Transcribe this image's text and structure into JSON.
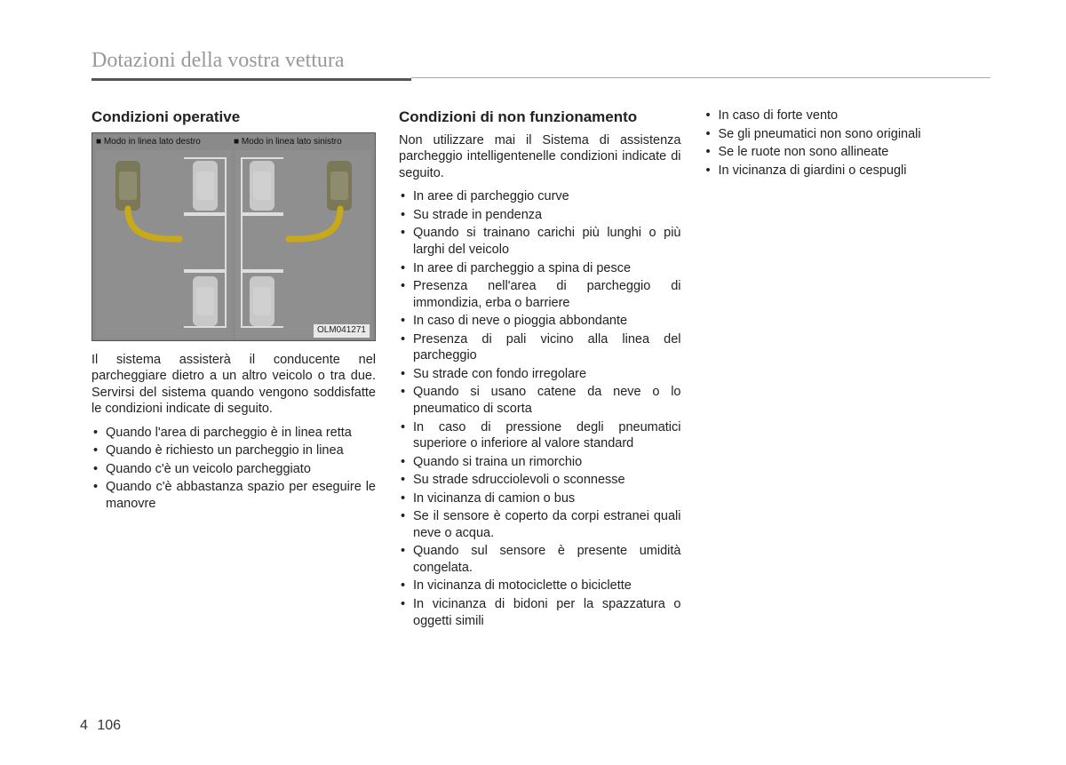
{
  "chapter_title": "Dotazioni della vostra vettura",
  "page": {
    "chapter": "4",
    "number": "106"
  },
  "col1": {
    "heading": "Condizioni operative",
    "figure": {
      "label_left": "■ Modo in linea lato destro",
      "label_right": "■ Modo in linea lato sinistro",
      "code": "OLM041271",
      "colors": {
        "bg": "#8a8a8a",
        "slot_border": "#dddddd",
        "path": "#c9a917",
        "car_moving": "#7a7856",
        "car_parked": "#c8c8c8"
      }
    },
    "intro": "Il sistema assisterà il conducente nel parcheggiare dietro a un altro veicolo o tra due. Servirsi del sistema quando vengono soddisfatte le condizioni indicate di seguito.",
    "bullets": [
      "Quando l'area di parcheggio è in linea retta",
      "Quando è richiesto un parcheggio in linea",
      "Quando c'è un veicolo parcheggiato",
      "Quando c'è abbastanza spazio per eseguire le manovre"
    ]
  },
  "col2": {
    "heading": "Condizioni di non funzionamento",
    "intro": "Non utilizzare mai il Sistema di assistenza parcheggio intelligentenelle condizioni indicate di seguito.",
    "bullets": [
      "In aree di parcheggio curve",
      "Su strade in pendenza",
      "Quando si trainano carichi più lunghi o più larghi del veicolo",
      "In aree di parcheggio a spina di pesce",
      "Presenza nell'area di parcheggio di immondizia, erba o barriere",
      "In caso di neve o pioggia abbondante",
      "Presenza di pali vicino alla linea del parcheggio",
      "Su strade con fondo irregolare",
      "Quando si usano catene da neve o lo pneumatico di scorta",
      "In caso di pressione degli pneumatici superiore o inferiore al valore standard",
      "Quando si traina un rimorchio",
      "Su strade sdrucciolevoli o sconnesse",
      "In vicinanza di camion o bus",
      "Se il sensore è coperto da corpi estranei quali neve o acqua.",
      "Quando sul sensore è presente umidità congelata.",
      "In vicinanza di motociclette o biciclette",
      "In vicinanza di bidoni per la spazzatura o oggetti simili"
    ]
  },
  "col3": {
    "bullets": [
      "In caso di forte vento",
      "Se gli pneumatici non sono originali",
      "Se le ruote non sono allineate",
      "In vicinanza di giardini o cespugli"
    ]
  }
}
